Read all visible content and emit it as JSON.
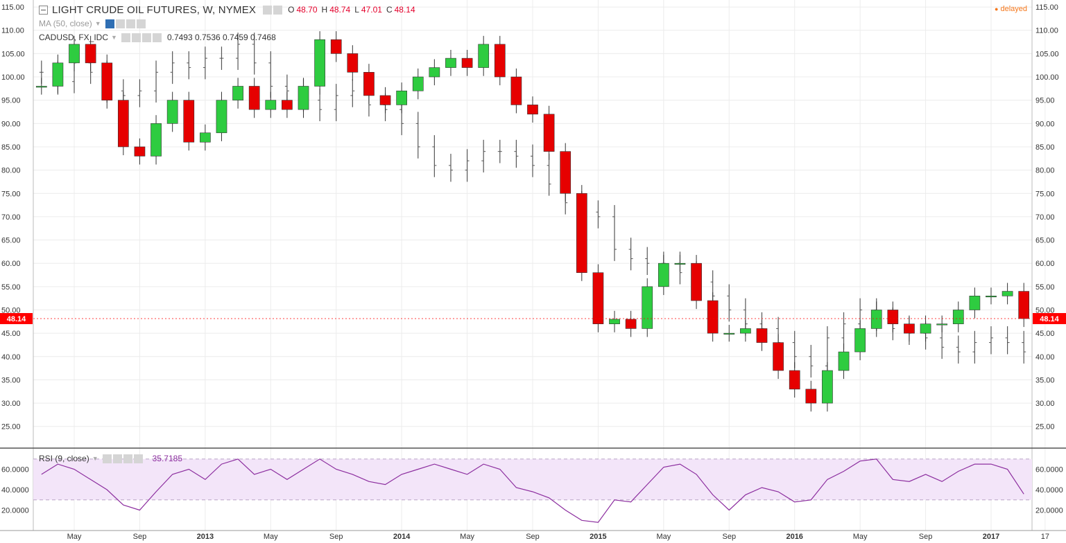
{
  "header": {
    "symbol": "LIGHT CRUDE OIL FUTURES, W, NYMEX",
    "open_label": "O",
    "open": "48.70",
    "high_label": "H",
    "high": "48.74",
    "low_label": "L",
    "low": "47.01",
    "close_label": "C",
    "close": "48.14",
    "status": "delayed"
  },
  "overlays": {
    "ma_label": "MA (50, close)",
    "compare_label": "CADUSD, FX_IDC",
    "compare_values": "0.7493  0.7536  0.7459  0.7468"
  },
  "rsi": {
    "label": "RSI (9, close)",
    "value": "35.7185"
  },
  "price_axis": [
    "115.00",
    "110.00",
    "105.00",
    "100.00",
    "95.00",
    "90.00",
    "85.00",
    "80.00",
    "75.00",
    "70.00",
    "65.00",
    "60.00",
    "55.00",
    "50.00",
    "45.00",
    "40.00",
    "35.00",
    "30.00",
    "25.00"
  ],
  "rsi_axis": [
    "60.0000",
    "40.0000",
    "20.0000"
  ],
  "last_price_tag": "48.14",
  "time_axis": [
    "May",
    "Sep",
    "2013",
    "May",
    "Sep",
    "2014",
    "May",
    "Sep",
    "2015",
    "May",
    "Sep",
    "2016",
    "May",
    "Sep",
    "2017",
    "17"
  ],
  "colors": {
    "up": "#2ecc40",
    "down": "#e60000",
    "compare": "#555555",
    "rsi_line": "#8c2e9f",
    "rsi_band": "#f3e5f9",
    "grid": "#ececec"
  },
  "chart_data": [
    {
      "type": "candlestick",
      "title": "LIGHT CRUDE OIL FUTURES, W, NYMEX",
      "y_axis": "price",
      "ylim": [
        20.5,
        116.5
      ],
      "x": [
        "2012-03",
        "2012-04",
        "2012-05",
        "2012-06",
        "2012-07",
        "2012-08",
        "2012-09",
        "2012-10",
        "2012-11",
        "2012-12",
        "2013-01",
        "2013-02",
        "2013-03",
        "2013-04",
        "2013-05",
        "2013-06",
        "2013-07",
        "2013-08",
        "2013-09",
        "2013-10",
        "2013-11",
        "2013-12",
        "2014-01",
        "2014-02",
        "2014-03",
        "2014-04",
        "2014-05",
        "2014-06",
        "2014-07",
        "2014-08",
        "2014-09",
        "2014-10",
        "2014-11",
        "2014-12",
        "2015-01",
        "2015-02",
        "2015-03",
        "2015-04",
        "2015-05",
        "2015-06",
        "2015-07",
        "2015-08",
        "2015-09",
        "2015-10",
        "2015-11",
        "2015-12",
        "2016-01",
        "2016-02",
        "2016-03",
        "2016-04",
        "2016-05",
        "2016-06",
        "2016-07",
        "2016-08",
        "2016-09",
        "2016-10",
        "2016-11",
        "2016-12",
        "2017-01",
        "2017-02",
        "2017-03"
      ],
      "series": [
        {
          "values": [
            98,
            103,
            107,
            103,
            95,
            85,
            83,
            90,
            95,
            86,
            88,
            95,
            98,
            93,
            95,
            93,
            98,
            108,
            105,
            101,
            96,
            94,
            97,
            100,
            102,
            104,
            102,
            107,
            100,
            94,
            92,
            84,
            75,
            58,
            47,
            48,
            46,
            55,
            60,
            60,
            52,
            45,
            45,
            46,
            43,
            37,
            33,
            30,
            37,
            41,
            46,
            50,
            47,
            45,
            47,
            47,
            50,
            53,
            53,
            54,
            48.14
          ]
        }
      ],
      "last": 48.14
    },
    {
      "type": "line",
      "y_axis": "price",
      "series": [
        {
          "name": "CADUSD, FX_IDC",
          "values": [
            101,
            99,
            103,
            101,
            97,
            96,
            97,
            101,
            103,
            102,
            104,
            104,
            107,
            103,
            98,
            97,
            95,
            93,
            96,
            97,
            94,
            93,
            90,
            85,
            81,
            80,
            82,
            84,
            84,
            83,
            81,
            77,
            73,
            71,
            70,
            63,
            61,
            60,
            60,
            58,
            56,
            53,
            50,
            47,
            46,
            43,
            40,
            38,
            44,
            47,
            50,
            48,
            46,
            45,
            44,
            42,
            41,
            43,
            44,
            43,
            41
          ],
          "last": 0.7468
        }
      ]
    },
    {
      "type": "line",
      "title": "RSI (9, close)",
      "ylim": [
        0,
        80
      ],
      "band": [
        30,
        70
      ],
      "series": [
        {
          "name": "RSI (9, close)",
          "values": [
            55,
            65,
            60,
            50,
            40,
            25,
            20,
            38,
            55,
            60,
            50,
            65,
            70,
            55,
            60,
            50,
            60,
            70,
            60,
            55,
            48,
            45,
            55,
            60,
            65,
            60,
            55,
            65,
            60,
            42,
            38,
            32,
            20,
            10,
            8,
            30,
            28,
            45,
            62,
            65,
            55,
            35,
            20,
            35,
            42,
            38,
            28,
            30,
            50,
            58,
            68,
            70,
            50,
            48,
            55,
            48,
            58,
            65,
            65,
            60,
            35.7185
          ]
        }
      ]
    }
  ]
}
